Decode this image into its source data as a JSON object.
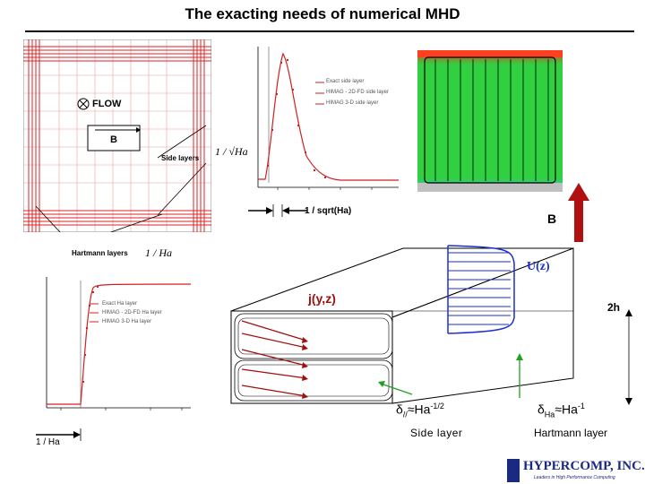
{
  "slide": {
    "title": "The exacting needs of numerical MHD"
  },
  "mesh_panel": {
    "flow_label": "FLOW",
    "b_label": "B",
    "side_layers_label": "Side layers",
    "side_layers_scale": "1 / √Ha",
    "hartmann_layers_label": "Hartmann layers",
    "hartmann_scale": "1 / Ha"
  },
  "side_layer_plot": {
    "legend": [
      "Exact side layer",
      "HIMAG - 2D-FD side layer",
      "HIMAG 3-D side layer"
    ],
    "width_label": "1 / sqrt(Ha)"
  },
  "hartmann_plot": {
    "legend": [
      "Exact Ha layer",
      "HIMAG - 2D-FD Ha layer",
      "HIMAG 3-D Ha layer"
    ],
    "width_label": "1 / Ha"
  },
  "duct": {
    "b_label": "B",
    "velocity_label": "U(z)",
    "current_label": "j(y,z)",
    "height_label": "2h",
    "side_delta": "δ",
    "side_sub": "//",
    "side_approx": "≈Ha",
    "side_exp": "-1/2",
    "side_layer_label": "Side layer",
    "ha_delta": "δ",
    "ha_sub": "Ha",
    "ha_approx": "≈Ha",
    "ha_exp": "-1",
    "hartmann_layer_label": "Hartmann layer"
  },
  "logo": {
    "name": "HYPERCOMP, INC.",
    "tagline": "Leaders in High Performance Computing"
  },
  "colors": {
    "mesh_red": "#e02020",
    "curve_red": "#d02020",
    "b_arrow": "#b01010",
    "velocity_blue": "#1a2fd0",
    "current_red": "#a01010",
    "layer_green": "#20a020"
  }
}
